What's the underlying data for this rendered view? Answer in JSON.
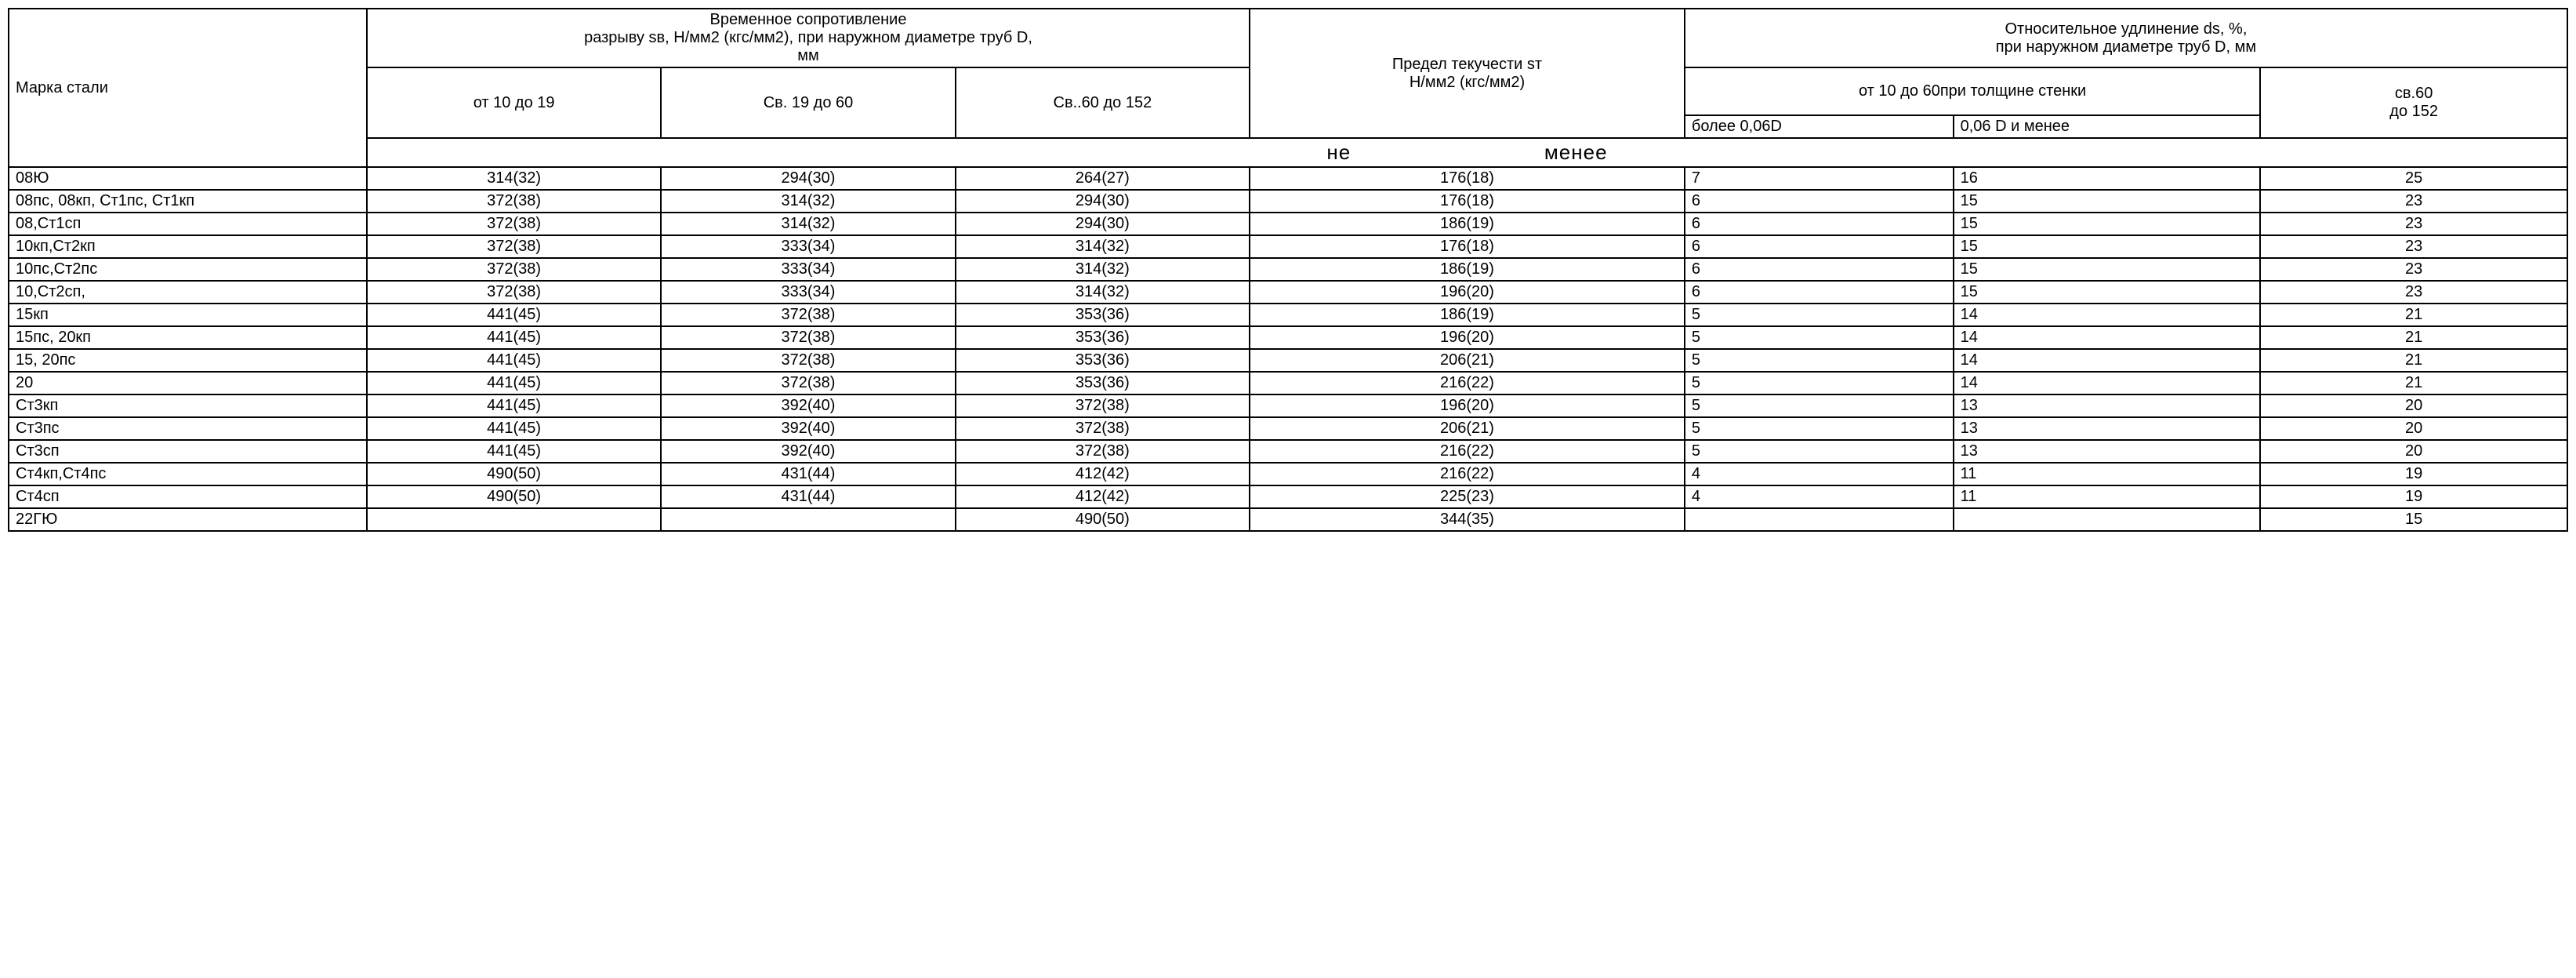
{
  "headers": {
    "steel_grade": "Марка стали",
    "tensile_group": "Временное сопротивление\nразрыву sв, Н/мм2 (кгс/мм2), при наружном диаметре труб D,\nмм",
    "tensile_sub1": "от 10 до 19",
    "tensile_sub2": "Св. 19 до 60",
    "tensile_sub3": "Св..60 до 152",
    "yield": "Предел текучести sт\nН/мм2 (кгс/мм2)",
    "elong_group": "Относительное удлинение ds, %,\nпри наружном диаметре труб D, мм",
    "elong_sub_group": "от 10 до 60при толщине стенки",
    "elong_sub1": "более 0,06D",
    "elong_sub2": "0,06 D и менее",
    "elong_sub3": "св.60\nдо 152",
    "not_less": "не                              менее"
  },
  "rows": [
    {
      "grade": "08Ю",
      "c2": "314(32)",
      "c3": "294(30)",
      "c4": "264(27)",
      "c5": "176(18)",
      "c6": "7",
      "c7": "16",
      "c8": "25"
    },
    {
      "grade": "08пс, 08кп, Ст1пс, Ст1кп",
      "c2": "372(38)",
      "c3": "314(32)",
      "c4": "294(30)",
      "c5": "176(18)",
      "c6": "6",
      "c7": "15",
      "c8": "23"
    },
    {
      "grade": "08,Ст1сп",
      "c2": "372(38)",
      "c3": "314(32)",
      "c4": "294(30)",
      "c5": "186(19)",
      "c6": "6",
      "c7": "15",
      "c8": "23"
    },
    {
      "grade": "10кп,Ст2кп",
      "c2": "372(38)",
      "c3": "333(34)",
      "c4": "314(32)",
      "c5": "176(18)",
      "c6": "6",
      "c7": "15",
      "c8": "23"
    },
    {
      "grade": "10пс,Ст2пс",
      "c2": "372(38)",
      "c3": "333(34)",
      "c4": "314(32)",
      "c5": "186(19)",
      "c6": "6",
      "c7": "15",
      "c8": "23"
    },
    {
      "grade": "10,Ст2сп,",
      "c2": "372(38)",
      "c3": "333(34)",
      "c4": "314(32)",
      "c5": "196(20)",
      "c6": "6",
      "c7": "15",
      "c8": "23"
    },
    {
      "grade": "15кп",
      "c2": "441(45)",
      "c3": "372(38)",
      "c4": "353(36)",
      "c5": "186(19)",
      "c6": "5",
      "c7": "14",
      "c8": "21"
    },
    {
      "grade": "15пс, 20кп",
      "c2": "441(45)",
      "c3": "372(38)",
      "c4": "353(36)",
      "c5": "196(20)",
      "c6": "5",
      "c7": "14",
      "c8": "21"
    },
    {
      "grade": "15, 20пс",
      "c2": "441(45)",
      "c3": "372(38)",
      "c4": "353(36)",
      "c5": "206(21)",
      "c6": "5",
      "c7": "14",
      "c8": "21"
    },
    {
      "grade": "20",
      "c2": "441(45)",
      "c3": "372(38)",
      "c4": "353(36)",
      "c5": "216(22)",
      "c6": "5",
      "c7": "14",
      "c8": "21"
    },
    {
      "grade": "Ст3кп",
      "c2": "441(45)",
      "c3": "392(40)",
      "c4": "372(38)",
      "c5": "196(20)",
      "c6": "5",
      "c7": "13",
      "c8": "20"
    },
    {
      "grade": "Ст3пс",
      "c2": "441(45)",
      "c3": "392(40)",
      "c4": "372(38)",
      "c5": "206(21)",
      "c6": "5",
      "c7": "13",
      "c8": "20"
    },
    {
      "grade": "Ст3сп",
      "c2": "441(45)",
      "c3": "392(40)",
      "c4": "372(38)",
      "c5": "216(22)",
      "c6": "5",
      "c7": "13",
      "c8": "20"
    },
    {
      "grade": "Ст4кп,Ст4пс",
      "c2": "490(50)",
      "c3": "431(44)",
      "c4": "412(42)",
      "c5": "216(22)",
      "c6": "4",
      "c7": "11",
      "c8": "19"
    },
    {
      "grade": "Ст4сп",
      "c2": "490(50)",
      "c3": "431(44)",
      "c4": "412(42)",
      "c5": "225(23)",
      "c6": "4",
      "c7": "11",
      "c8": "19"
    },
    {
      "grade": "22ГЮ",
      "c2": "",
      "c3": "",
      "c4": "490(50)",
      "c5": "344(35)",
      "c6": "",
      "c7": "",
      "c8": "15"
    }
  ]
}
